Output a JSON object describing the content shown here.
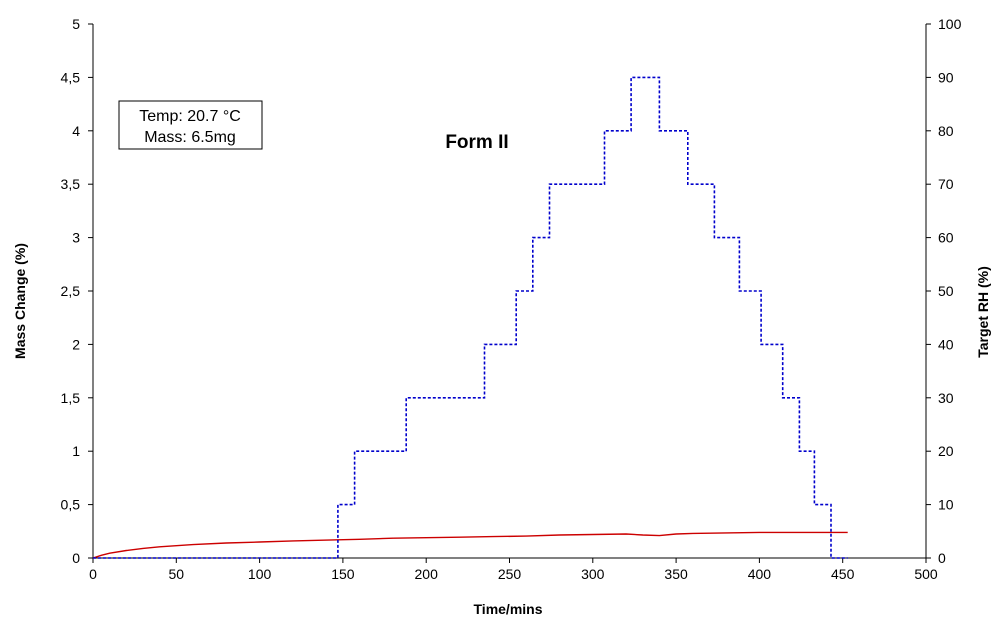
{
  "chart_data": {
    "type": "line",
    "title": "Form II",
    "xlabel": "Time/mins",
    "ylabel": "Mass Change (%)",
    "y2label": "Target RH (%)",
    "xlim": [
      0,
      500
    ],
    "ylim": [
      0,
      5
    ],
    "y2lim": [
      0,
      100
    ],
    "x_ticks": [
      "0",
      "50",
      "100",
      "150",
      "200",
      "250",
      "300",
      "350",
      "400",
      "450",
      "500"
    ],
    "y_ticks": [
      "0",
      "0,5",
      "1",
      "1,5",
      "2",
      "2,5",
      "3",
      "3,5",
      "4",
      "4,5",
      "5"
    ],
    "y2_ticks": [
      "0",
      "10",
      "20",
      "30",
      "40",
      "50",
      "60",
      "70",
      "80",
      "90",
      "100"
    ],
    "annotation": [
      "Temp:  20.7 °C",
      "Mass:  6.5mg"
    ],
    "grid": false,
    "series": [
      {
        "axis": "left",
        "color": "#cc0000",
        "style": "solid",
        "x": [
          0,
          5,
          10,
          20,
          30,
          40,
          50,
          60,
          80,
          100,
          120,
          147,
          160,
          180,
          200,
          220,
          240,
          260,
          280,
          300,
          320,
          330,
          340,
          350,
          360,
          380,
          400,
          420,
          440,
          453
        ],
        "y": [
          0,
          0.025,
          0.045,
          0.07,
          0.09,
          0.105,
          0.115,
          0.125,
          0.14,
          0.15,
          0.16,
          0.17,
          0.175,
          0.185,
          0.19,
          0.195,
          0.2,
          0.205,
          0.215,
          0.22,
          0.225,
          0.215,
          0.21,
          0.225,
          0.23,
          0.235,
          0.24,
          0.24,
          0.24,
          0.24
        ]
      },
      {
        "axis": "right",
        "color": "#0000cc",
        "style": "dashed",
        "step": true,
        "x": [
          0,
          147,
          157,
          188,
          235,
          254,
          264,
          274,
          307,
          323,
          340,
          357,
          373,
          388,
          401,
          414,
          424,
          433,
          443,
          453
        ],
        "y": [
          0,
          10,
          20,
          30,
          40,
          50,
          60,
          70,
          80,
          90,
          80,
          70,
          60,
          50,
          40,
          30,
          20,
          10,
          0,
          0
        ]
      }
    ]
  }
}
